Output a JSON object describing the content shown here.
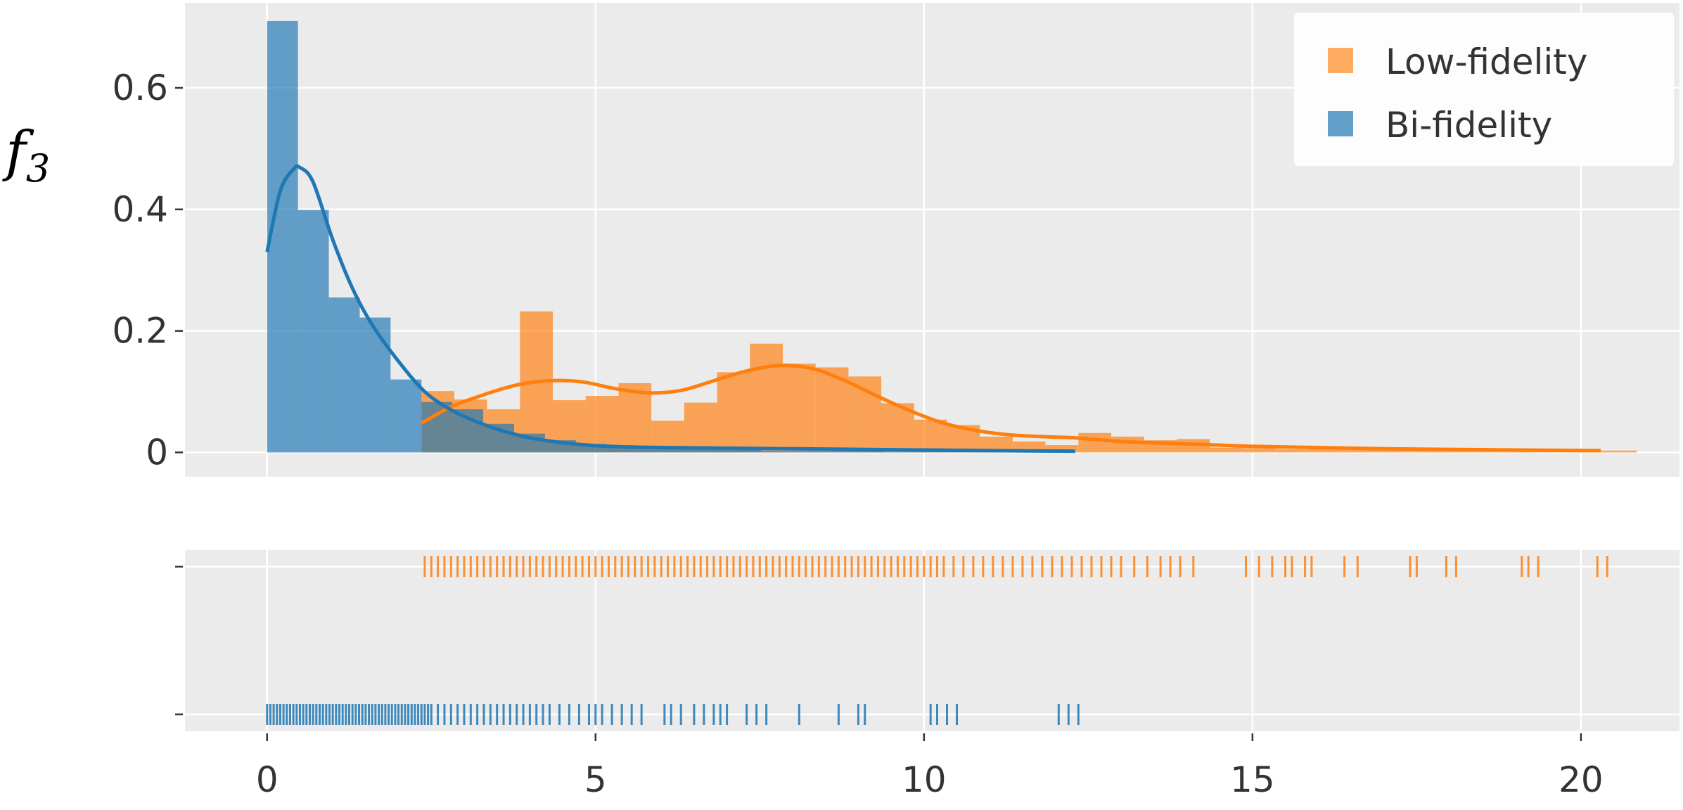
{
  "chart_data": {
    "type": "histogram",
    "ylabel_main": "f",
    "ylabel_sub": "3",
    "xlim": [
      -1.25,
      21.5
    ],
    "ylim": [
      -0.04,
      0.74
    ],
    "xticks": [
      "0",
      "5",
      "10",
      "15",
      "20"
    ],
    "xtick_values": [
      0,
      5,
      10,
      15,
      20
    ],
    "yticks": [
      "0",
      "0.2",
      "0.4",
      "0.6"
    ],
    "ytick_values": [
      0,
      0.2,
      0.4,
      0.6
    ],
    "grid": true,
    "legend_position": "top-right",
    "series": [
      {
        "name": "Low-fidelity",
        "color": "#ff7f0e",
        "bin_width": 0.5,
        "bin_starts": [
          2.35,
          2.85,
          3.35,
          3.85,
          4.35,
          4.85,
          5.35,
          5.85,
          6.35,
          6.85,
          7.35,
          7.85,
          8.35,
          8.85,
          9.35,
          9.85,
          10.35,
          10.85,
          11.35,
          11.85,
          12.35,
          12.85,
          13.35,
          13.85,
          14.35,
          14.85,
          15.35,
          15.85,
          16.35,
          16.85,
          17.35,
          17.85,
          18.35,
          18.85,
          19.35,
          19.85,
          20.35
        ],
        "densities": [
          0.101,
          0.087,
          0.071,
          0.232,
          0.086,
          0.093,
          0.114,
          0.052,
          0.082,
          0.132,
          0.179,
          0.146,
          0.14,
          0.125,
          0.081,
          0.054,
          0.045,
          0.026,
          0.018,
          0.012,
          0.032,
          0.026,
          0.02,
          0.022,
          0.008,
          0.007,
          0.005,
          0.007,
          0.006,
          0.004,
          0.004,
          0.004,
          0.003,
          0.003,
          0.003,
          0.003,
          0.003
        ],
        "kde_x": [
          2.35,
          2.8,
          3.3,
          3.8,
          4.3,
          4.8,
          5.3,
          5.8,
          6.3,
          6.8,
          7.3,
          7.8,
          8.3,
          8.8,
          9.3,
          9.8,
          10.3,
          10.8,
          11.3,
          11.8,
          12.3,
          13.0,
          14.0,
          15.0,
          16.0,
          17.0,
          18.0,
          19.0,
          20.3
        ],
        "kde_y": [
          0.048,
          0.075,
          0.095,
          0.111,
          0.118,
          0.116,
          0.105,
          0.098,
          0.102,
          0.118,
          0.134,
          0.143,
          0.138,
          0.118,
          0.092,
          0.068,
          0.048,
          0.036,
          0.029,
          0.026,
          0.024,
          0.018,
          0.014,
          0.01,
          0.008,
          0.006,
          0.005,
          0.004,
          0.003
        ],
        "rug_x": [
          2.4,
          2.5,
          2.6,
          2.7,
          2.8,
          2.9,
          3.0,
          3.1,
          3.2,
          3.3,
          3.4,
          3.5,
          3.6,
          3.7,
          3.8,
          3.9,
          4.0,
          4.1,
          4.2,
          4.3,
          4.4,
          4.5,
          4.6,
          4.7,
          4.8,
          4.9,
          5.0,
          5.1,
          5.2,
          5.3,
          5.4,
          5.5,
          5.6,
          5.7,
          5.8,
          5.9,
          6.0,
          6.1,
          6.2,
          6.3,
          6.4,
          6.5,
          6.6,
          6.7,
          6.8,
          6.9,
          7.0,
          7.1,
          7.2,
          7.3,
          7.4,
          7.5,
          7.6,
          7.7,
          7.8,
          7.9,
          8.0,
          8.1,
          8.2,
          8.3,
          8.4,
          8.5,
          8.6,
          8.7,
          8.8,
          8.9,
          9.0,
          9.1,
          9.2,
          9.3,
          9.4,
          9.5,
          9.6,
          9.7,
          9.8,
          9.9,
          10.0,
          10.1,
          10.2,
          10.3,
          10.45,
          10.6,
          10.75,
          10.9,
          11.05,
          11.2,
          11.35,
          11.5,
          11.65,
          11.8,
          11.95,
          12.1,
          12.25,
          12.4,
          12.55,
          12.7,
          12.85,
          13.0,
          13.2,
          13.4,
          13.6,
          13.75,
          13.9,
          14.1,
          14.9,
          15.1,
          15.3,
          15.5,
          15.6,
          15.8,
          15.9,
          16.4,
          16.6,
          17.4,
          17.5,
          17.95,
          18.1,
          19.1,
          19.2,
          19.35,
          20.25,
          20.4
        ]
      },
      {
        "name": "Bi-fidelity",
        "color": "#1f77b4",
        "bin_width": 0.47,
        "bin_starts": [
          0.0,
          0.47,
          0.94,
          1.41,
          1.88,
          2.35,
          2.82,
          3.29,
          3.76,
          4.23,
          4.7,
          5.17,
          5.64,
          6.11,
          6.58,
          7.05,
          7.52,
          7.99,
          8.46,
          8.93,
          9.4,
          9.87,
          10.34,
          10.81,
          11.28,
          11.75
        ],
        "densities": [
          0.71,
          0.399,
          0.255,
          0.222,
          0.12,
          0.083,
          0.071,
          0.047,
          0.031,
          0.02,
          0.014,
          0.01,
          0.006,
          0.007,
          0.005,
          0.004,
          0.002,
          0.002,
          0.002,
          0.003,
          0.001,
          0.001,
          0.003,
          0.001,
          0.001,
          0.002
        ],
        "kde_x": [
          0.0,
          0.2,
          0.4,
          0.5,
          0.7,
          1.0,
          1.3,
          1.6,
          2.0,
          2.4,
          2.8,
          3.2,
          3.6,
          4.0,
          4.5,
          5.0,
          5.5,
          6.0,
          7.0,
          8.0,
          9.0,
          10.0,
          11.0,
          12.3
        ],
        "kde_y": [
          0.33,
          0.43,
          0.466,
          0.469,
          0.445,
          0.35,
          0.27,
          0.21,
          0.15,
          0.1,
          0.07,
          0.05,
          0.035,
          0.024,
          0.016,
          0.011,
          0.009,
          0.008,
          0.007,
          0.006,
          0.005,
          0.004,
          0.003,
          0.002
        ],
        "rug_x": [
          0.0,
          0.05,
          0.1,
          0.15,
          0.2,
          0.25,
          0.3,
          0.35,
          0.4,
          0.45,
          0.5,
          0.55,
          0.6,
          0.65,
          0.7,
          0.75,
          0.8,
          0.85,
          0.9,
          0.95,
          1.0,
          1.05,
          1.1,
          1.15,
          1.2,
          1.25,
          1.3,
          1.35,
          1.4,
          1.45,
          1.5,
          1.55,
          1.6,
          1.65,
          1.7,
          1.75,
          1.8,
          1.85,
          1.9,
          1.95,
          2.0,
          2.05,
          2.1,
          2.15,
          2.2,
          2.25,
          2.3,
          2.35,
          2.4,
          2.45,
          2.5,
          2.6,
          2.7,
          2.8,
          2.9,
          3.0,
          3.1,
          3.2,
          3.3,
          3.4,
          3.5,
          3.6,
          3.7,
          3.8,
          3.9,
          4.0,
          4.1,
          4.2,
          4.3,
          4.45,
          4.6,
          4.75,
          4.9,
          5.0,
          5.1,
          5.25,
          5.4,
          5.55,
          5.7,
          6.05,
          6.15,
          6.3,
          6.5,
          6.65,
          6.8,
          6.9,
          7.0,
          7.3,
          7.45,
          7.6,
          8.1,
          8.7,
          9.0,
          9.1,
          10.1,
          10.2,
          10.35,
          10.5,
          12.05,
          12.2,
          12.35
        ]
      }
    ]
  }
}
